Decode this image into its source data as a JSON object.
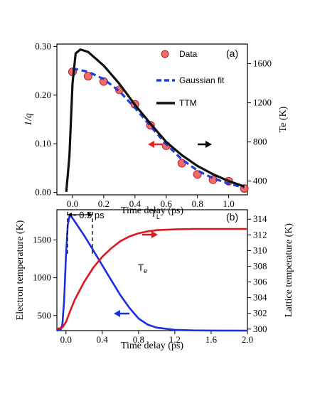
{
  "chart_data": [
    {
      "panel": "(a)",
      "type": "line",
      "xlabel": "Time delay (ps)",
      "ylabel_left": "1/q",
      "ylabel_right": "Te (K)",
      "xlim": [
        -0.1,
        1.12
      ],
      "ylim_left": [
        -0.005,
        0.305
      ],
      "ylim_right": [
        260,
        1800
      ],
      "xticks": [
        "0.0",
        "0.2",
        "0.4",
        "0.6",
        "0.8",
        "1.0"
      ],
      "yticks_left": [
        "0.00",
        "0.10",
        "0.20",
        "0.30"
      ],
      "yticks_right": [
        "400",
        "800",
        "1200",
        "1600"
      ],
      "legend": [
        "Data",
        "Gaussian fit",
        "TTM"
      ],
      "series": [
        {
          "name": "Data",
          "axis": "left",
          "x": [
            0.0,
            0.1,
            0.2,
            0.3,
            0.4,
            0.5,
            0.6,
            0.7,
            0.8,
            0.9,
            1.0,
            1.1
          ],
          "y": [
            0.248,
            0.239,
            0.228,
            0.211,
            0.181,
            0.138,
            0.096,
            0.06,
            0.037,
            0.026,
            0.023,
            0.008
          ],
          "yerr": [
            0.006,
            0.006,
            0.006,
            0.007,
            0.007,
            0.007,
            0.006,
            0.006,
            0.005,
            0.005,
            0.005,
            0.004
          ],
          "color": "#f26b6b"
        },
        {
          "name": "Gaussian fit",
          "axis": "left",
          "x": [
            0.0,
            0.1,
            0.2,
            0.3,
            0.4,
            0.5,
            0.6,
            0.7,
            0.8,
            0.9,
            1.0,
            1.1
          ],
          "y": [
            0.255,
            0.248,
            0.233,
            0.208,
            0.174,
            0.136,
            0.099,
            0.068,
            0.045,
            0.029,
            0.018,
            0.01
          ],
          "color": "#1f3fd6"
        },
        {
          "name": "TTM",
          "axis": "right",
          "x": [
            -0.04,
            -0.02,
            0.0,
            0.02,
            0.05,
            0.1,
            0.2,
            0.3,
            0.4,
            0.5,
            0.6,
            0.7,
            0.8,
            0.9,
            1.0,
            1.1
          ],
          "y": [
            290,
            650,
            1400,
            1705,
            1745,
            1720,
            1580,
            1395,
            1180,
            985,
            800,
            665,
            555,
            470,
            400,
            345
          ],
          "color": "#111111"
        }
      ],
      "annotations": [
        {
          "type": "arrow",
          "direction": "left",
          "color": "#e8231f"
        },
        {
          "type": "arrow",
          "direction": "right",
          "color": "#000000"
        }
      ]
    },
    {
      "panel": "(b)",
      "type": "line",
      "xlabel": "Time delay (ps)",
      "ylabel_left": "Electron temperature (K)",
      "ylabel_right": "Lattice temperature (K)",
      "xlim": [
        -0.1,
        2.0
      ],
      "ylim_left": [
        300,
        1900
      ],
      "ylim_right": [
        299.8,
        315.2
      ],
      "xticks": [
        "0.0",
        "0.4",
        "0.8",
        "1.2",
        "1.6",
        "2.0"
      ],
      "yticks_left": [
        "500",
        "1000",
        "1500"
      ],
      "yticks_right": [
        "300",
        "302",
        "304",
        "306",
        "308",
        "310",
        "312",
        "314"
      ],
      "series": [
        {
          "name": "Te",
          "axis": "left",
          "x": [
            -0.1,
            -0.06,
            -0.04,
            -0.02,
            0.0,
            0.02,
            0.04,
            0.06,
            0.1,
            0.2,
            0.3,
            0.4,
            0.5,
            0.6,
            0.7,
            0.8,
            0.9,
            1.0,
            1.2,
            1.4,
            1.6,
            2.0
          ],
          "y": [
            300,
            310,
            380,
            700,
            1300,
            1700,
            1820,
            1810,
            1740,
            1560,
            1365,
            1165,
            965,
            770,
            600,
            460,
            380,
            340,
            310,
            303,
            301,
            300
          ],
          "color": "#1a2fe0"
        },
        {
          "name": "TL",
          "axis": "right",
          "x": [
            -0.1,
            -0.04,
            0.0,
            0.05,
            0.1,
            0.2,
            0.3,
            0.4,
            0.5,
            0.6,
            0.7,
            0.8,
            0.9,
            1.0,
            1.2,
            1.4,
            1.6,
            2.0
          ],
          "y": [
            300,
            300.2,
            300.9,
            302.4,
            303.8,
            306.0,
            307.8,
            309.2,
            310.3,
            311.2,
            311.8,
            312.2,
            312.45,
            312.6,
            312.7,
            312.75,
            312.75,
            312.75
          ],
          "color": "#e0161b"
        }
      ],
      "annotations": [
        {
          "type": "text",
          "text": "~ 0.5 ps"
        },
        {
          "type": "text",
          "text": "T",
          "subscript": "L"
        },
        {
          "type": "text",
          "text": "T",
          "subscript": "e"
        },
        {
          "type": "arrow",
          "direction": "right",
          "color": "#e0161b"
        },
        {
          "type": "arrow",
          "direction": "left",
          "color": "#1a2fe0"
        }
      ]
    }
  ]
}
